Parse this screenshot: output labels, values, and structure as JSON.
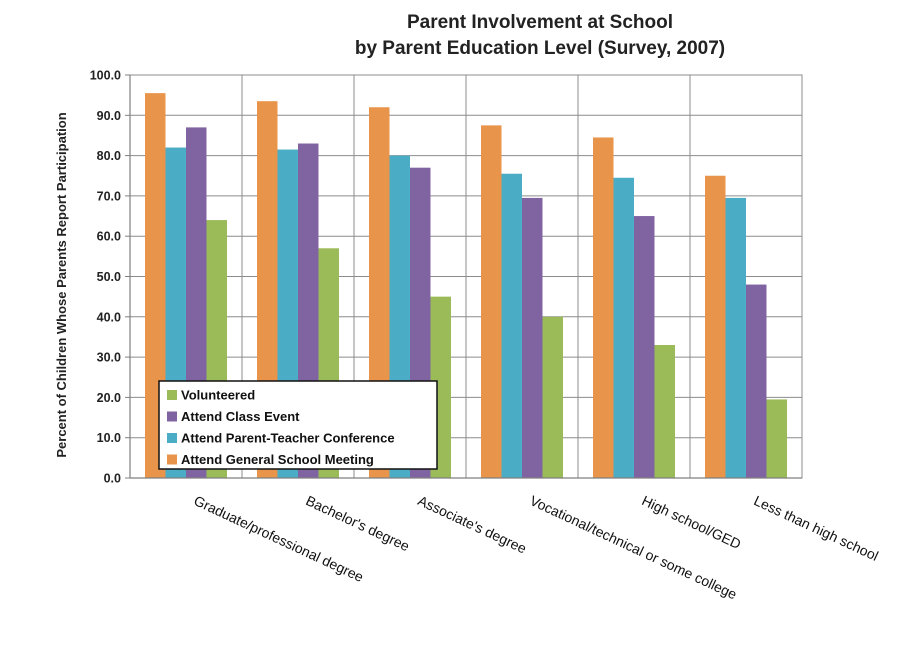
{
  "chart_data": {
    "type": "bar",
    "title_lines": [
      "Parent Involvement at School",
      "by Parent Education Level (Survey, 2007)"
    ],
    "ylabel": "Percent of Children Whose Parents Report  Participation",
    "xlabel": "",
    "ylim": [
      0,
      100
    ],
    "yticks": [
      "0.0",
      "10.0",
      "20.0",
      "30.0",
      "40.0",
      "50.0",
      "60.0",
      "70.0",
      "80.0",
      "90.0",
      "100.0"
    ],
    "grid": true,
    "legend_position": "bottom-left",
    "categories": [
      "Graduate/professional degree",
      "Bachelor's degree",
      "Associate's degree",
      "Vocational/technical or some college",
      "High school/GED",
      "Less than high school"
    ],
    "series": [
      {
        "name": "Attend General School Meeting",
        "color": "#E8944A",
        "values": [
          95.5,
          93.5,
          92.0,
          87.5,
          84.5,
          75.0
        ]
      },
      {
        "name": "Attend Parent-Teacher Conference",
        "color": "#4BACC6",
        "values": [
          82.0,
          81.5,
          80.0,
          75.5,
          74.5,
          69.5
        ]
      },
      {
        "name": "Attend Class Event",
        "color": "#8064A2",
        "values": [
          87.0,
          83.0,
          77.0,
          69.5,
          65.0,
          48.0
        ]
      },
      {
        "name": "Volunteered",
        "color": "#9BBB59",
        "values": [
          64.0,
          57.0,
          45.0,
          40.0,
          33.0,
          19.5
        ]
      }
    ],
    "legend_order": [
      "Volunteered",
      "Attend Class Event",
      "Attend Parent-Teacher Conference",
      "Attend General School Meeting"
    ]
  }
}
